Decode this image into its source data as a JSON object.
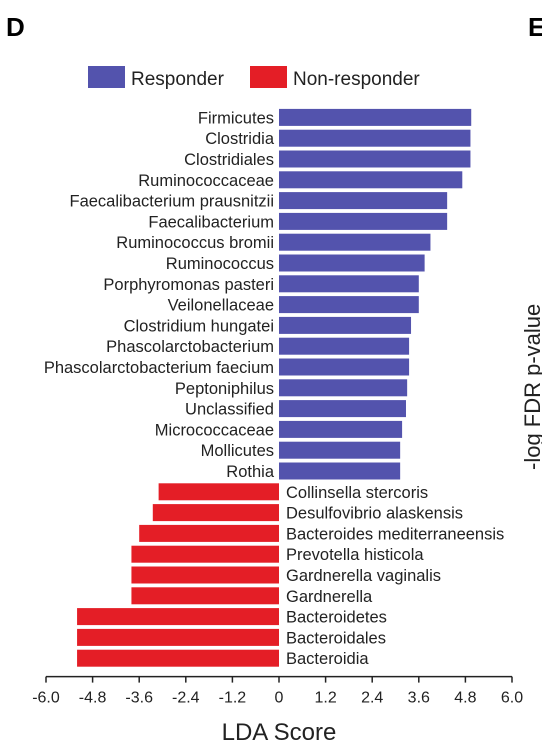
{
  "panel_label": "D",
  "neighbor_panel_label": "E",
  "neighbor_axis_fragment": "-log   FDR p-value",
  "colors": {
    "responder": "#5353ad",
    "non_responder": "#e41e26"
  },
  "chart_data": {
    "type": "bar",
    "orientation": "horizontal",
    "xlabel": "LDA Score",
    "xlim": [
      -6.0,
      6.0
    ],
    "xticks": [
      "-6.0",
      "-4.8",
      "-3.6",
      "-2.4",
      "-1.2",
      "0",
      "1.2",
      "2.4",
      "3.6",
      "4.8",
      "6.0"
    ],
    "legend": {
      "placement": "top",
      "entries": [
        "Responder",
        "Non-responder"
      ]
    },
    "grid": false,
    "categories": [
      "Firmicutes",
      "Clostridia",
      "Clostridiales",
      "Ruminococcaceae",
      "Faecalibacterium prausnitzii",
      "Faecalibacterium",
      "Ruminococcus bromii",
      "Ruminococcus",
      "Porphyromonas pasteri",
      "Veilonellaceae",
      "Clostridium hungatei",
      "Phascolarctobacterium",
      "Phascolarctobacterium faecium",
      "Peptoniphilus",
      "Unclassified",
      "Micrococcaceae",
      "Mollicutes",
      "Rothia",
      "Collinsella stercoris",
      "Desulfovibrio alaskensis",
      "Bacteroides mediterraneensis",
      "Prevotella histicola",
      "Gardnerella vaginalis",
      "Gardnerella",
      "Bacteroidetes",
      "Bacteroidales",
      "Bacteroidia"
    ],
    "values": [
      4.95,
      4.93,
      4.93,
      4.72,
      4.33,
      4.33,
      3.9,
      3.75,
      3.6,
      3.6,
      3.4,
      3.35,
      3.35,
      3.3,
      3.27,
      3.17,
      3.12,
      3.12,
      -3.1,
      -3.25,
      -3.6,
      -3.8,
      -3.8,
      -3.8,
      -5.2,
      -5.2,
      -5.2
    ],
    "groups": [
      "Responder",
      "Responder",
      "Responder",
      "Responder",
      "Responder",
      "Responder",
      "Responder",
      "Responder",
      "Responder",
      "Responder",
      "Responder",
      "Responder",
      "Responder",
      "Responder",
      "Responder",
      "Responder",
      "Responder",
      "Responder",
      "Non-responder",
      "Non-responder",
      "Non-responder",
      "Non-responder",
      "Non-responder",
      "Non-responder",
      "Non-responder",
      "Non-responder",
      "Non-responder"
    ]
  }
}
